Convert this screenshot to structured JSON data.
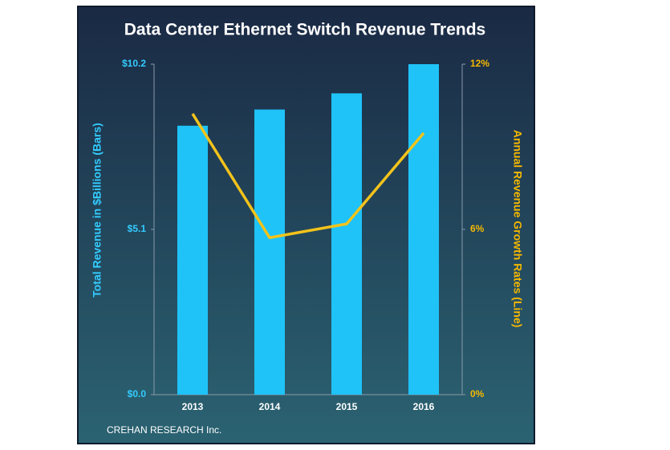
{
  "chart_data": {
    "type": "bar_line",
    "title": "Data Center Ethernet Switch Revenue Trends",
    "y_label": "Total Revenue in $Billions (Bars)",
    "y2_label": "Annual  Revenue Growth Rates (Line)",
    "source": "CREHAN RESEARCH Inc.",
    "categories": [
      "2013",
      "2014",
      "2015",
      "2016"
    ],
    "series": [
      {
        "name": "Total Revenue",
        "type": "bar",
        "color": "#1fc3f8",
        "values": [
          8.3,
          8.8,
          9.3,
          10.2
        ]
      },
      {
        "name": "Annual Revenue Growth Rate",
        "type": "line",
        "axis": "y2",
        "color": "#f2c31b",
        "values": [
          10.2,
          5.7,
          6.2,
          9.5
        ]
      }
    ],
    "ylim": [
      0,
      10.2
    ],
    "yticks": [
      {
        "value": 0,
        "label": "$0.0"
      },
      {
        "value": 5.1,
        "label": "$5.1"
      },
      {
        "value": 10.2,
        "label": "$10.2"
      }
    ],
    "y2lim": [
      0,
      12
    ],
    "y2ticks": [
      {
        "value": 0,
        "label": "0%"
      },
      {
        "value": 6,
        "label": "6%"
      },
      {
        "value": 12,
        "label": "12%"
      }
    ]
  }
}
